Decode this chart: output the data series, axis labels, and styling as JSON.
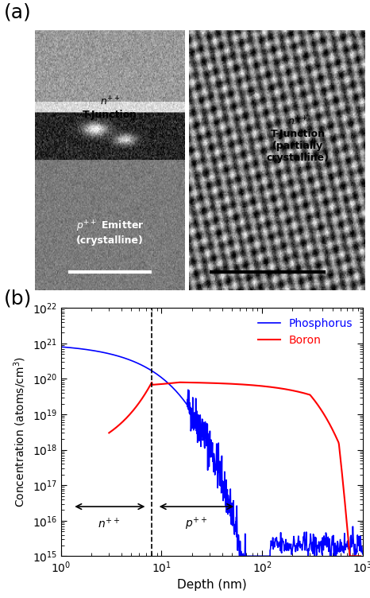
{
  "panel_a_label": "(a)",
  "panel_b_label": "(b)",
  "phosphorus_color": "#0000FF",
  "boron_color": "#FF0000",
  "xlabel": "Depth (nm)",
  "ylabel": "Concentration (atoms/cm$^3$)",
  "xlim": [
    1,
    1000
  ],
  "ylim": [
    1000000000000000.0,
    1e+22
  ],
  "dashed_line_x": 8.0,
  "n_region_label": "$n^{++}$",
  "p_region_label": "$p^{++}$",
  "legend_phosphorus": "Phosphorus",
  "legend_boron": "Boron"
}
